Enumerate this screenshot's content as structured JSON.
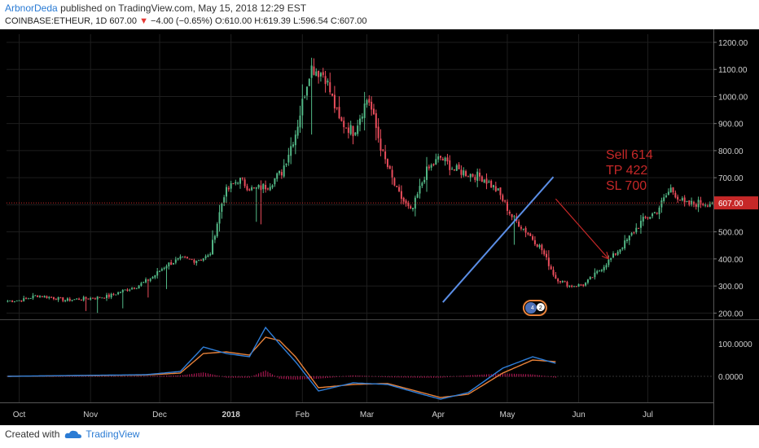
{
  "header": {
    "author": "ArbnorDeda",
    "published": "published on TradingView.com, May 15, 2018 12:29 EST"
  },
  "ticker": {
    "symbol": "COINBASE:ETHEUR, 1D",
    "last": "607.00",
    "change": "−4.00 (−0.65%)",
    "open": "O:610.00",
    "high": "H:619.39",
    "low": "L:596.54",
    "close": "C:607.00"
  },
  "footer": {
    "created_with": "Created with",
    "brand": "TradingView"
  },
  "colors": {
    "background": "#000000",
    "up_candle": "#53b987",
    "down_candle": "#eb4d5c",
    "trendline": "#5b8ee6",
    "annotation": "#c62828",
    "macd": "#2f7ed8",
    "signal": "#e8823a",
    "price_badge": "#c62828"
  },
  "chart_data": {
    "type": "candlestick",
    "price_axis": {
      "ticks": [
        200,
        300,
        400,
        500,
        600,
        700,
        800,
        900,
        1000,
        1100,
        1200
      ],
      "tick_labels": [
        "200.00",
        "300.00",
        "400.00",
        "500.00",
        "600.00",
        "700.00",
        "800.00",
        "900.00",
        "1000.00",
        "1100.00",
        "1200.00"
      ],
      "ylim": [
        180,
        1230
      ],
      "last_price": 607.0,
      "last_price_label": "607.00"
    },
    "time_axis": {
      "ticks": [
        "Oct",
        "Nov",
        "Dec",
        "2018",
        "Feb",
        "Mar",
        "Apr",
        "May",
        "Jun",
        "Jul"
      ],
      "tick_index": [
        5,
        36,
        66,
        97,
        128,
        156,
        187,
        217,
        248,
        278
      ]
    },
    "closes_weekly": [
      245,
      248,
      265,
      258,
      248,
      252,
      256,
      262,
      282,
      300,
      330,
      378,
      400,
      395,
      410,
      640,
      695,
      655,
      670,
      720,
      870,
      1110,
      1080,
      910,
      870,
      1000,
      790,
      650,
      570,
      720,
      775,
      730,
      715,
      700,
      650,
      555,
      500,
      440,
      330,
      300,
      305,
      355,
      410,
      470,
      540,
      575,
      660,
      600,
      607
    ],
    "total_bars": 307,
    "trendline": {
      "start": [
        189,
        240
      ],
      "end": [
        237,
        703
      ]
    },
    "projection_arrow": {
      "start": [
        238,
        622
      ],
      "end": [
        261,
        400
      ]
    },
    "annotation": [
      "Sell 614",
      "TP  422",
      "SL 700"
    ],
    "indicator": {
      "name": "MACD",
      "ticks": [
        0,
        100
      ],
      "tick_labels": [
        "0.0000",
        "100.0000"
      ],
      "ylim": [
        -80,
        170
      ],
      "series": [
        {
          "label": "MACD",
          "anchors": [
            [
              0,
              0
            ],
            [
              60,
              5
            ],
            [
              75,
              15
            ],
            [
              85,
              90
            ],
            [
              95,
              70
            ],
            [
              105,
              60
            ],
            [
              112,
              150
            ],
            [
              118,
              100
            ],
            [
              125,
              45
            ],
            [
              135,
              -45
            ],
            [
              150,
              -20
            ],
            [
              165,
              -25
            ],
            [
              180,
              -55
            ],
            [
              188,
              -70
            ],
            [
              200,
              -50
            ],
            [
              215,
              25
            ],
            [
              228,
              60
            ],
            [
              238,
              40
            ]
          ]
        },
        {
          "label": "Signal",
          "anchors": [
            [
              0,
              0
            ],
            [
              60,
              4
            ],
            [
              75,
              10
            ],
            [
              85,
              70
            ],
            [
              95,
              75
            ],
            [
              105,
              65
            ],
            [
              112,
              120
            ],
            [
              118,
              110
            ],
            [
              125,
              60
            ],
            [
              135,
              -35
            ],
            [
              150,
              -25
            ],
            [
              165,
              -22
            ],
            [
              180,
              -50
            ],
            [
              188,
              -65
            ],
            [
              200,
              -55
            ],
            [
              215,
              10
            ],
            [
              228,
              50
            ],
            [
              238,
              45
            ]
          ]
        }
      ]
    },
    "events_badge": {
      "index": 229,
      "labels": [
        "4",
        "2"
      ]
    }
  }
}
